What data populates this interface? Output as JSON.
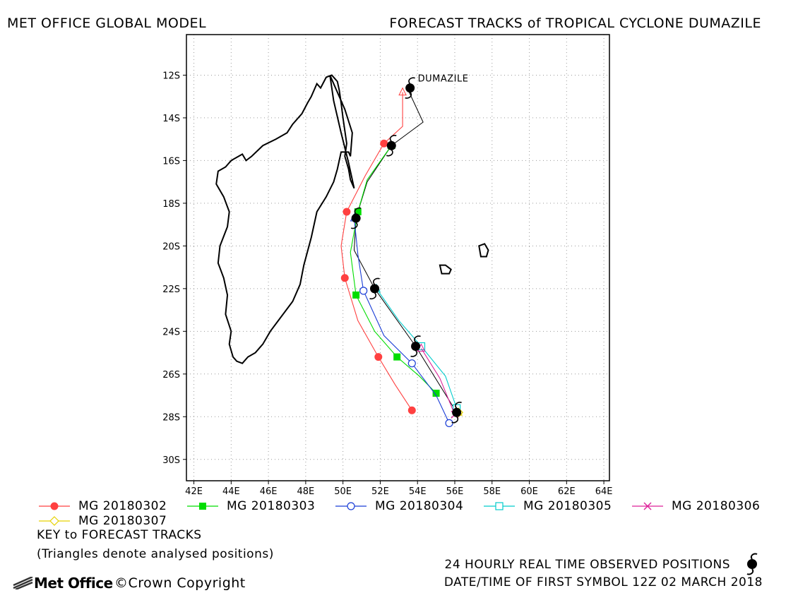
{
  "header": {
    "left_title": "MET OFFICE GLOBAL MODEL",
    "right_title": "FORECAST TRACKS of TROPICAL CYCLONE DUMAZILE"
  },
  "chart_data": {
    "type": "scatter",
    "xlim": [
      41.6,
      64.3
    ],
    "ylim": [
      -31.0,
      -10.1
    ],
    "x_ticks": [
      42,
      44,
      46,
      48,
      50,
      52,
      54,
      56,
      58,
      60,
      62,
      64
    ],
    "x_tick_labels": [
      "42E",
      "44E",
      "46E",
      "48E",
      "50E",
      "52E",
      "54E",
      "56E",
      "58E",
      "60E",
      "62E",
      "64E"
    ],
    "y_ticks": [
      -12,
      -14,
      -16,
      -18,
      -20,
      -22,
      -24,
      -26,
      -28,
      -30
    ],
    "y_tick_labels": [
      "12S",
      "14S",
      "16S",
      "18S",
      "20S",
      "22S",
      "24S",
      "26S",
      "28S",
      "30S"
    ],
    "grid": true,
    "storm_label": "DUMAZILE",
    "observed": {
      "name": "24 HOURLY REAL TIME OBSERVED POSITIONS",
      "color": "#000000",
      "lon": [
        53.6,
        52.6,
        50.7,
        51.7,
        53.9,
        56.1
      ],
      "lat": [
        -12.6,
        -15.3,
        -18.7,
        -22.0,
        -24.7,
        -27.8
      ],
      "line_lon": [
        53.6,
        53.5,
        54.3,
        52.6,
        51.3,
        50.7,
        50.6,
        51.7,
        53.9,
        56.1
      ],
      "line_lat": [
        -12.6,
        -12.7,
        -14.2,
        -15.3,
        -17.0,
        -18.7,
        -20.2,
        -22.0,
        -24.7,
        -27.8
      ]
    },
    "series": [
      {
        "name": "MG 20180302",
        "color": "#ff4040",
        "marker": "filled-circle",
        "analysed": [
          53.2,
          -12.8
        ],
        "lon": [
          53.2,
          53.2,
          52.2,
          51.2,
          50.2,
          49.9,
          50.1,
          50.8,
          51.9,
          52.8,
          53.7
        ],
        "lat": [
          -12.8,
          -14.4,
          -15.2,
          -16.7,
          -18.4,
          -20.0,
          -21.5,
          -23.5,
          -25.2,
          -26.5,
          -27.7
        ],
        "markers_idx": [
          2,
          4,
          6,
          8,
          10
        ]
      },
      {
        "name": "MG 20180303",
        "color": "#00dd00",
        "marker": "filled-square",
        "analysed": [
          52.6,
          -15.3
        ],
        "lon": [
          52.6,
          51.3,
          50.8,
          50.4,
          50.7,
          51.7,
          52.9,
          54.1,
          55.0
        ],
        "lat": [
          -15.3,
          -16.9,
          -18.4,
          -20.3,
          -22.3,
          -24.0,
          -25.2,
          -26.1,
          -26.9
        ],
        "markers_idx": [
          2,
          4,
          6,
          8
        ]
      },
      {
        "name": "MG 20180304",
        "color": "#1a3dd6",
        "marker": "open-circle",
        "analysed": [
          50.6,
          -18.7
        ],
        "lon": [
          50.6,
          50.8,
          51.1,
          52.2,
          53.7,
          55.0,
          55.7
        ],
        "lat": [
          -18.7,
          -20.4,
          -22.1,
          -24.2,
          -25.5,
          -27.0,
          -28.3
        ],
        "markers_idx": [
          2,
          4,
          6
        ]
      },
      {
        "name": "MG 20180305",
        "color": "#00cccc",
        "marker": "open-square",
        "analysed": [
          51.8,
          -22.0
        ],
        "lon": [
          51.8,
          53.0,
          54.2,
          55.5,
          56.1
        ],
        "lat": [
          -22.0,
          -23.5,
          -24.7,
          -26.1,
          -27.6
        ],
        "markers_idx": [
          2,
          4
        ]
      },
      {
        "name": "MG 20180306",
        "color": "#dd2299",
        "marker": "cross",
        "analysed": [
          54.2,
          -24.8
        ],
        "lon": [
          54.2,
          55.2,
          56.0
        ],
        "lat": [
          -24.8,
          -26.2,
          -27.9
        ],
        "markers_idx": [
          2
        ]
      },
      {
        "name": "MG 20180307",
        "color": "#e6d200",
        "marker": "diamond",
        "analysed": [
          56.2,
          -27.8
        ],
        "lon": [
          56.2
        ],
        "lat": [
          -27.8
        ],
        "markers_idx": [
          0
        ]
      }
    ],
    "land": [
      {
        "lon": [
          49.3,
          49.7,
          50.1,
          50.5,
          50.4,
          50.3,
          49.9,
          49.7,
          49.5,
          49.1,
          48.6,
          48.3,
          47.9,
          47.7,
          47.3,
          46.7,
          46.1,
          45.7,
          45.3,
          44.9,
          44.6,
          44.3,
          44.1,
          43.9,
          44.0,
          43.7,
          43.8,
          43.6,
          43.3,
          43.4,
          43.8,
          43.9,
          43.6,
          43.2,
          43.3,
          43.7,
          44.0,
          44.6,
          44.8,
          45.1,
          45.7,
          46.4,
          47.0,
          47.3,
          47.8,
          48.1,
          48.3,
          48.6,
          48.8,
          49.1,
          49.4,
          49.7,
          49.8,
          49.9,
          50.0,
          50.2,
          50.1,
          50.3,
          50.4,
          50.6,
          50.3,
          49.9,
          49.5,
          49.3
        ],
        "lat": [
          -12.0,
          -12.8,
          -13.6,
          -14.7,
          -15.8,
          -15.6,
          -15.6,
          -16.4,
          -17.0,
          -17.7,
          -18.4,
          -19.6,
          -20.9,
          -21.8,
          -22.6,
          -23.3,
          -24.0,
          -24.6,
          -25.0,
          -25.2,
          -25.5,
          -25.4,
          -25.2,
          -24.6,
          -24.0,
          -23.2,
          -22.3,
          -21.5,
          -20.8,
          -20.0,
          -19.1,
          -18.4,
          -17.7,
          -17.1,
          -16.5,
          -16.3,
          -16.0,
          -15.7,
          -16.0,
          -15.8,
          -15.3,
          -15.0,
          -14.7,
          -14.3,
          -13.8,
          -13.3,
          -13.0,
          -12.4,
          -12.6,
          -12.1,
          -12.0,
          -12.3,
          -12.7,
          -13.3,
          -14.0,
          -15.2,
          -15.8,
          -16.4,
          -16.9,
          -17.3,
          -16.1,
          -14.7,
          -13.2,
          -12.0
        ]
      },
      {
        "lon": [
          55.2,
          55.5,
          55.8,
          55.7,
          55.3,
          55.2
        ],
        "lat": [
          -20.9,
          -20.9,
          -21.1,
          -21.3,
          -21.3,
          -20.9
        ]
      },
      {
        "lon": [
          57.3,
          57.6,
          57.8,
          57.7,
          57.4,
          57.3
        ],
        "lat": [
          -20.0,
          -19.9,
          -20.2,
          -20.5,
          -20.5,
          -20.0
        ]
      }
    ]
  },
  "legend_rows": [
    [
      {
        "idx": 0
      },
      {
        "idx": 1
      },
      {
        "idx": 2
      },
      {
        "idx": 3
      },
      {
        "idx": 4
      }
    ],
    [
      {
        "idx": 5
      }
    ]
  ],
  "key": {
    "title": "KEY to FORECAST TRACKS",
    "note": "(Triangles denote analysed positions)"
  },
  "footer": {
    "observed_note": "24 HOURLY REAL TIME OBSERVED POSITIONS",
    "date_note": "DATE/TIME OF FIRST SYMBOL 12Z 02 MARCH 2018",
    "logo_text": "Met Office",
    "copyright": "©Crown Copyright"
  }
}
